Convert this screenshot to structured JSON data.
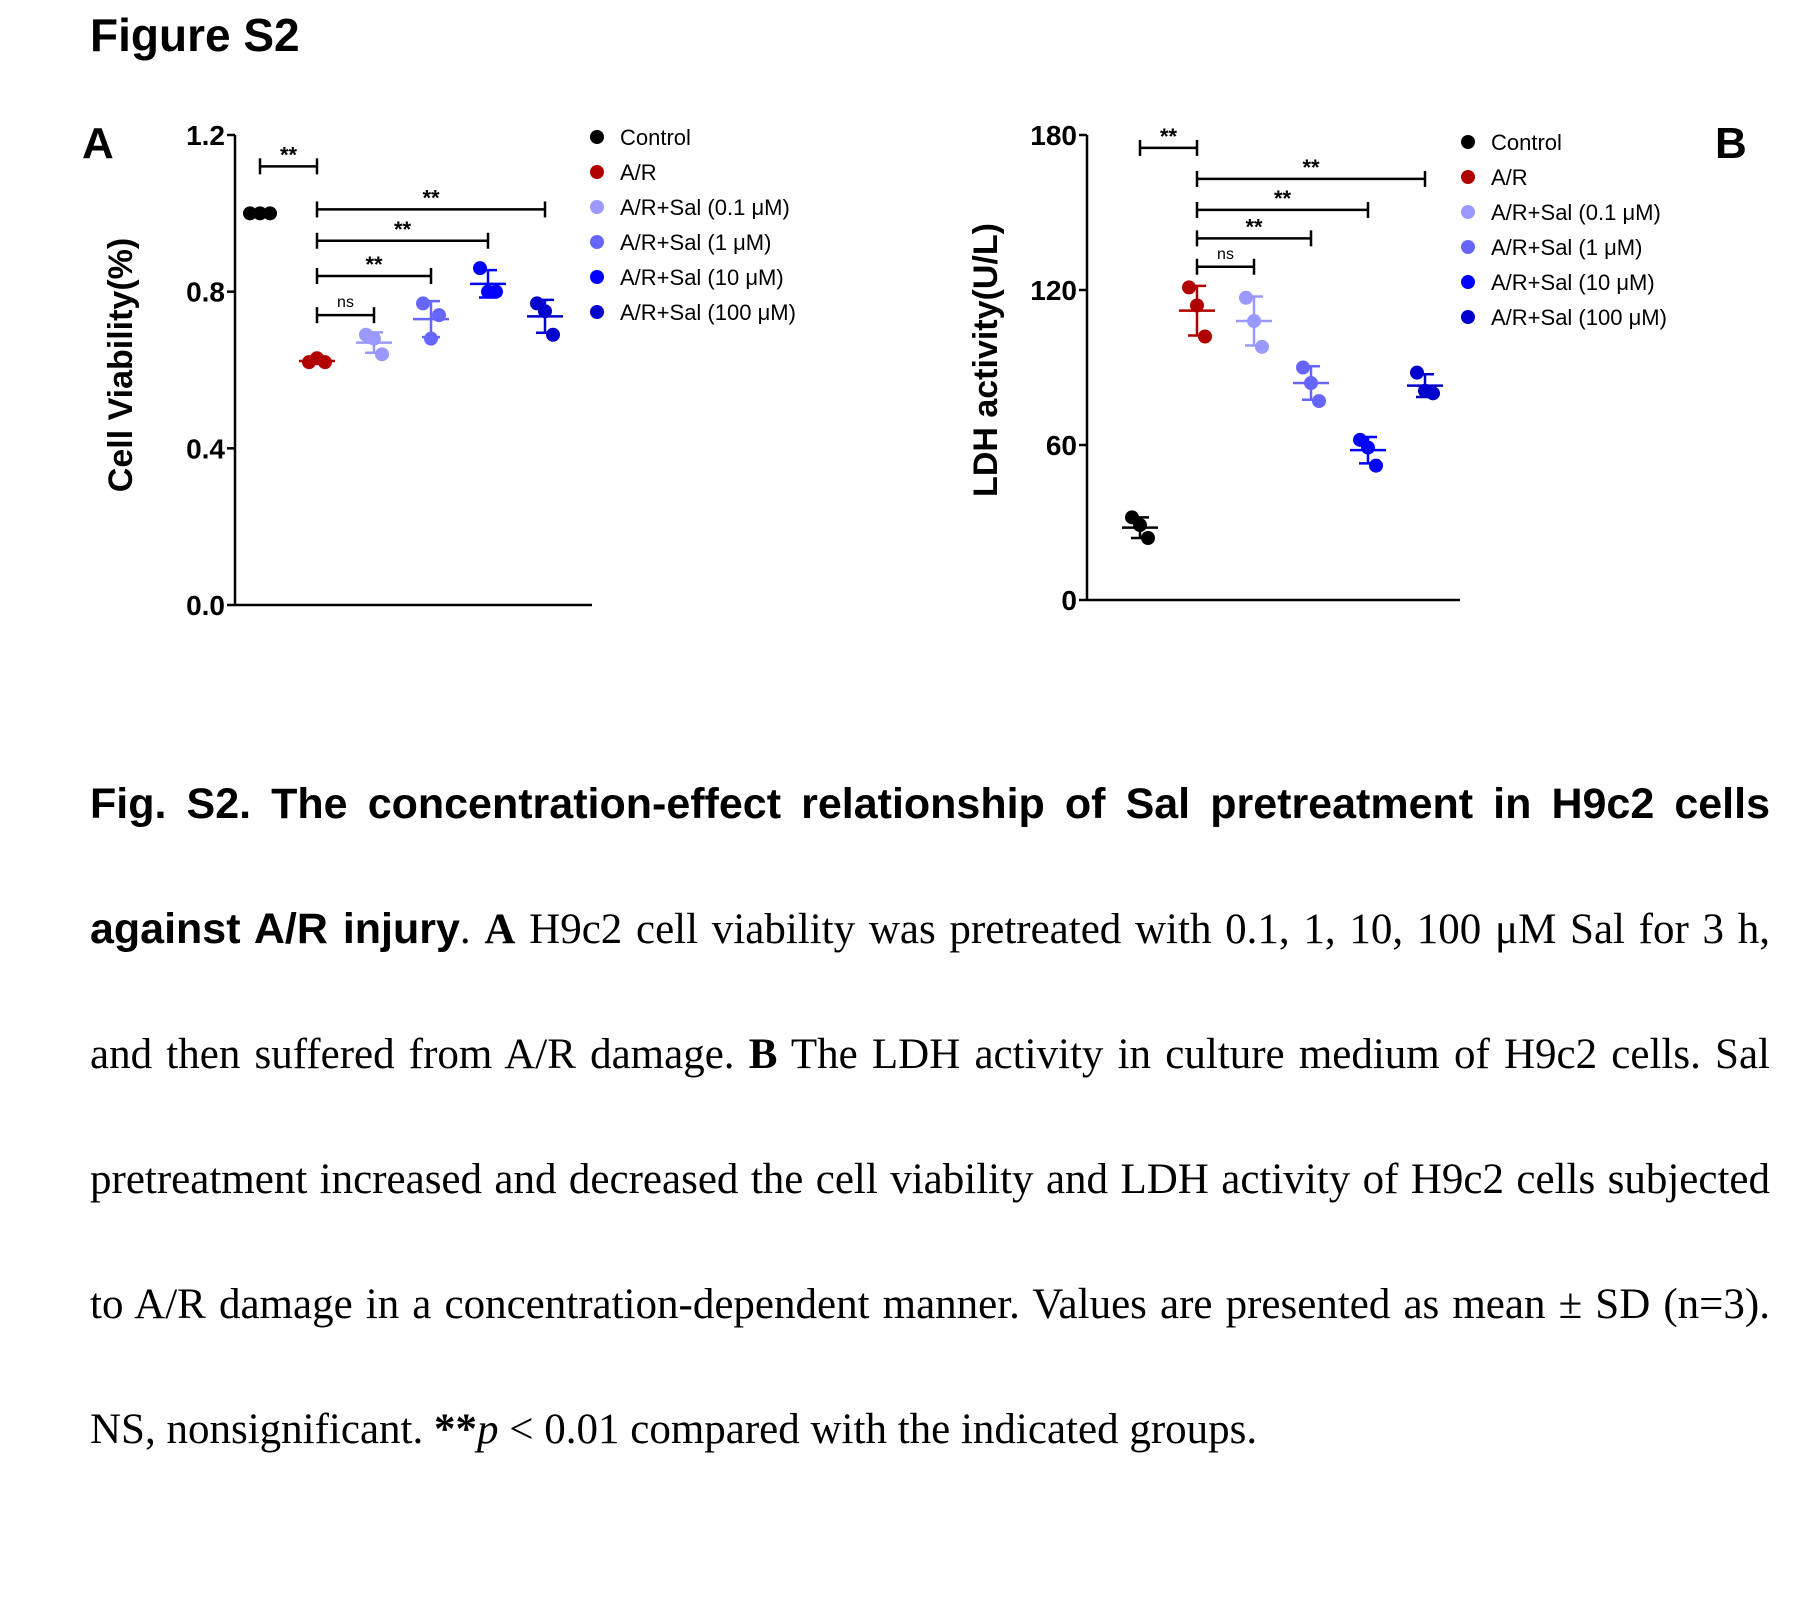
{
  "figure_title": "Figure S2",
  "caption": {
    "heading": "Fig. S2. The concentration-effect relationship of Sal pretreatment in H9c2 cells against A/R injury",
    "sep_a": ". ",
    "label_a": "A",
    "text_a": " H9c2 cell viability was pretreated with 0.1, 1, 10, 100 μM Sal for 3 h, and then suffered from A/R damage. ",
    "label_b": "B",
    "text_b": " The LDH activity in culture medium of H9c2 cells. Sal pretreatment increased and decreased the cell viability and LDH activity of H9c2 cells subjected to A/R damage in a concentration-dependent manner. Values are presented as mean ± SD (n=3). NS, nonsignificant. ",
    "sig_stars": "**",
    "p_symbol": "p",
    "text_c": " < 0.01 compared with the indicated groups."
  },
  "chart_data": [
    {
      "panel": "A",
      "type": "scatter",
      "ylabel": "Cell Viability(%)",
      "xlabel": "",
      "ylim": [
        0,
        1.2
      ],
      "yticks": [
        0.0,
        0.4,
        0.8,
        1.2
      ],
      "ytick_labels": [
        "0.0",
        "0.4",
        "0.8",
        "1.2"
      ],
      "legend_position": "top-right",
      "groups": [
        {
          "name": "Control",
          "color": "#000000",
          "points": [
            1.0,
            1.0,
            1.0
          ],
          "mean": 1.0,
          "sd": 0.0
        },
        {
          "name": "A/R",
          "color": "#b00000",
          "points": [
            0.62,
            0.63,
            0.62
          ],
          "mean": 0.623,
          "sd": 0.006
        },
        {
          "name": "A/R+Sal (0.1 μM)",
          "color": "#9999ff",
          "points": [
            0.69,
            0.68,
            0.64
          ],
          "mean": 0.67,
          "sd": 0.026
        },
        {
          "name": "A/R+Sal (1 μM)",
          "color": "#6666ff",
          "points": [
            0.77,
            0.68,
            0.74
          ],
          "mean": 0.73,
          "sd": 0.046
        },
        {
          "name": "A/R+Sal (10 μM)",
          "color": "#0000ff",
          "points": [
            0.86,
            0.8,
            0.8
          ],
          "mean": 0.82,
          "sd": 0.035
        },
        {
          "name": "A/R+Sal (100 μM)",
          "color": "#0000cc",
          "points": [
            0.77,
            0.75,
            0.69
          ],
          "mean": 0.737,
          "sd": 0.042
        }
      ],
      "comparisons": [
        {
          "from": 0,
          "to": 1,
          "y": 1.12,
          "label": "**"
        },
        {
          "from": 1,
          "to": 5,
          "y": 1.01,
          "label": "**"
        },
        {
          "from": 1,
          "to": 4,
          "y": 0.93,
          "label": "**"
        },
        {
          "from": 1,
          "to": 3,
          "y": 0.84,
          "label": "**"
        },
        {
          "from": 1,
          "to": 2,
          "y": 0.74,
          "label": "ns"
        }
      ]
    },
    {
      "panel": "B",
      "type": "scatter",
      "ylabel": "LDH activity(U/L)",
      "xlabel": "",
      "ylim": [
        0,
        180
      ],
      "yticks": [
        0,
        60,
        120,
        180
      ],
      "ytick_labels": [
        "0",
        "60",
        "120",
        "180"
      ],
      "legend_position": "top-right",
      "groups": [
        {
          "name": "Control",
          "color": "#000000",
          "points": [
            32,
            29,
            24
          ],
          "mean": 28,
          "sd": 4
        },
        {
          "name": "A/R",
          "color": "#b00000",
          "points": [
            121,
            114,
            102
          ],
          "mean": 112,
          "sd": 9.6
        },
        {
          "name": "A/R+Sal (0.1 μM)",
          "color": "#9999ff",
          "points": [
            117,
            108,
            98
          ],
          "mean": 108,
          "sd": 9.5
        },
        {
          "name": "A/R+Sal (1 μM)",
          "color": "#6666ff",
          "points": [
            90,
            84,
            77
          ],
          "mean": 84,
          "sd": 6.5
        },
        {
          "name": "A/R+Sal (10 μM)",
          "color": "#0000ff",
          "points": [
            62,
            59,
            52
          ],
          "mean": 58,
          "sd": 5.1
        },
        {
          "name": "A/R+Sal (100 μM)",
          "color": "#0000cc",
          "points": [
            88,
            81,
            80
          ],
          "mean": 83,
          "sd": 4.4
        }
      ],
      "comparisons": [
        {
          "from": 0,
          "to": 1,
          "y": 175,
          "label": "**"
        },
        {
          "from": 1,
          "to": 5,
          "y": 163,
          "label": "**"
        },
        {
          "from": 1,
          "to": 4,
          "y": 151,
          "label": "**"
        },
        {
          "from": 1,
          "to": 3,
          "y": 140,
          "label": "**"
        },
        {
          "from": 1,
          "to": 2,
          "y": 129,
          "label": "ns"
        }
      ]
    }
  ]
}
